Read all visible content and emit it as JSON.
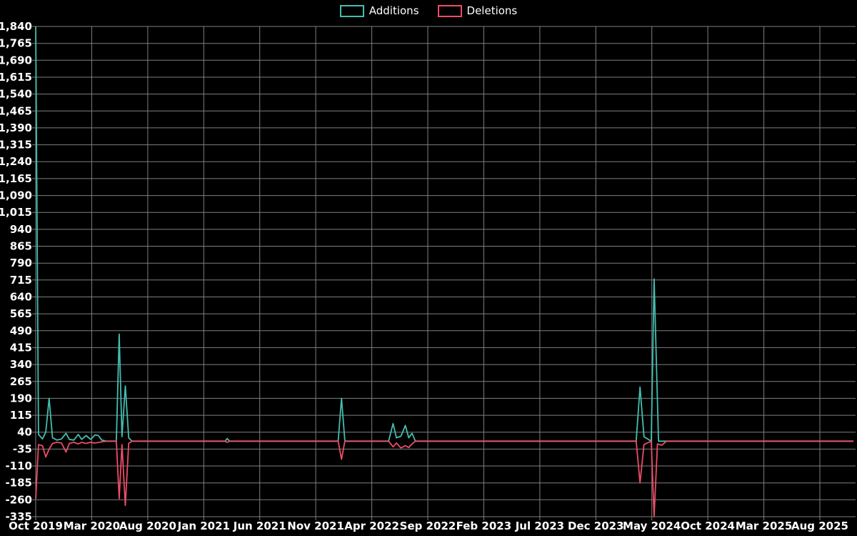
{
  "colors": {
    "background": "#000000",
    "text": "#ffffff",
    "grid": "#7f7f7f",
    "additions": "#43beb0",
    "deletions": "#ec4d66"
  },
  "legend": {
    "items": [
      {
        "label": "Additions"
      },
      {
        "label": "Deletions"
      }
    ]
  },
  "chart_data": {
    "type": "line",
    "title": "",
    "xlabel": "",
    "ylabel": "",
    "grid": true,
    "legend_position": "top-center",
    "ylim": [
      -335,
      1840
    ],
    "y_tick_step": 75,
    "x_unit": "months since Oct 2019",
    "xlim_months": [
      0,
      73.2
    ],
    "y_ticks": [
      {
        "v": 1840,
        "label": "1,840"
      },
      {
        "v": 1765,
        "label": "1,765"
      },
      {
        "v": 1690,
        "label": "1,690"
      },
      {
        "v": 1615,
        "label": "1,615"
      },
      {
        "v": 1540,
        "label": "1,540"
      },
      {
        "v": 1465,
        "label": "1,465"
      },
      {
        "v": 1390,
        "label": "1,390"
      },
      {
        "v": 1315,
        "label": "1,315"
      },
      {
        "v": 1240,
        "label": "1,240"
      },
      {
        "v": 1165,
        "label": "1,165"
      },
      {
        "v": 1090,
        "label": "1,090"
      },
      {
        "v": 1015,
        "label": "1,015"
      },
      {
        "v": 940,
        "label": "940"
      },
      {
        "v": 865,
        "label": "865"
      },
      {
        "v": 790,
        "label": "790"
      },
      {
        "v": 715,
        "label": "715"
      },
      {
        "v": 640,
        "label": "640"
      },
      {
        "v": 565,
        "label": "565"
      },
      {
        "v": 490,
        "label": "490"
      },
      {
        "v": 415,
        "label": "415"
      },
      {
        "v": 340,
        "label": "340"
      },
      {
        "v": 265,
        "label": "265"
      },
      {
        "v": 190,
        "label": "190"
      },
      {
        "v": 115,
        "label": "115"
      },
      {
        "v": 40,
        "label": "40"
      },
      {
        "v": -35,
        "label": "-35"
      },
      {
        "v": -110,
        "label": "-110"
      },
      {
        "v": -185,
        "label": "-185"
      },
      {
        "v": -260,
        "label": "-260"
      },
      {
        "v": -335,
        "label": "-335"
      }
    ],
    "x_ticks": [
      {
        "month": 0,
        "label": "Oct 2019"
      },
      {
        "month": 5,
        "label": "Mar 2020"
      },
      {
        "month": 10,
        "label": "Aug 2020"
      },
      {
        "month": 15,
        "label": "Jan 2021"
      },
      {
        "month": 20,
        "label": "Jun 2021"
      },
      {
        "month": 25,
        "label": "Nov 2021"
      },
      {
        "month": 30,
        "label": "Apr 2022"
      },
      {
        "month": 35,
        "label": "Sep 2022"
      },
      {
        "month": 40,
        "label": "Feb 2023"
      },
      {
        "month": 45,
        "label": "Jul 2023"
      },
      {
        "month": 50,
        "label": "Dec 2023"
      },
      {
        "month": 55,
        "label": "May 2024"
      },
      {
        "month": 60,
        "label": "Oct 2024"
      },
      {
        "month": 65,
        "label": "Mar 2025"
      },
      {
        "month": 70,
        "label": "Aug 2025"
      }
    ],
    "series": [
      {
        "name": "Additions",
        "color": "#43beb0",
        "points": [
          [
            0,
            1840
          ],
          [
            0.25,
            30
          ],
          [
            0.6,
            10
          ],
          [
            0.9,
            40
          ],
          [
            1.2,
            190
          ],
          [
            1.5,
            15
          ],
          [
            1.9,
            5
          ],
          [
            2.3,
            10
          ],
          [
            2.7,
            35
          ],
          [
            3,
            8
          ],
          [
            3.4,
            5
          ],
          [
            3.8,
            30
          ],
          [
            4.1,
            8
          ],
          [
            4.5,
            25
          ],
          [
            4.9,
            8
          ],
          [
            5.3,
            28
          ],
          [
            5.6,
            25
          ],
          [
            5.9,
            5
          ],
          [
            6.3,
            0
          ],
          [
            7.2,
            0
          ],
          [
            7.45,
            475
          ],
          [
            7.7,
            20
          ],
          [
            8,
            245
          ],
          [
            8.3,
            15
          ],
          [
            8.6,
            0
          ],
          [
            16.9,
            0
          ],
          [
            17.1,
            12
          ],
          [
            17.3,
            0
          ],
          [
            27,
            0
          ],
          [
            27.3,
            190
          ],
          [
            27.6,
            0
          ],
          [
            31.5,
            0
          ],
          [
            31.9,
            78
          ],
          [
            32.2,
            15
          ],
          [
            32.6,
            22
          ],
          [
            33,
            70
          ],
          [
            33.3,
            15
          ],
          [
            33.6,
            35
          ],
          [
            33.9,
            0
          ],
          [
            53.6,
            0
          ],
          [
            53.95,
            240
          ],
          [
            54.3,
            20
          ],
          [
            54.95,
            0
          ],
          [
            55.2,
            720
          ],
          [
            55.6,
            0
          ],
          [
            73,
            0
          ]
        ]
      },
      {
        "name": "Deletions",
        "color": "#ec4d66",
        "points": [
          [
            0,
            -255
          ],
          [
            0.25,
            -15
          ],
          [
            0.6,
            -20
          ],
          [
            0.9,
            -70
          ],
          [
            1.2,
            -35
          ],
          [
            1.5,
            -10
          ],
          [
            1.9,
            -5
          ],
          [
            2.3,
            -8
          ],
          [
            2.7,
            -48
          ],
          [
            3,
            -10
          ],
          [
            3.4,
            -5
          ],
          [
            3.8,
            -12
          ],
          [
            4.1,
            -5
          ],
          [
            4.5,
            -10
          ],
          [
            4.9,
            -5
          ],
          [
            5.3,
            -8
          ],
          [
            5.9,
            -3
          ],
          [
            6.3,
            0
          ],
          [
            7.2,
            0
          ],
          [
            7.45,
            -255
          ],
          [
            7.7,
            -15
          ],
          [
            8,
            -285
          ],
          [
            8.3,
            -10
          ],
          [
            8.6,
            0
          ],
          [
            16.9,
            0
          ],
          [
            17.1,
            -5
          ],
          [
            17.3,
            0
          ],
          [
            27,
            0
          ],
          [
            27.3,
            -80
          ],
          [
            27.6,
            0
          ],
          [
            31.5,
            0
          ],
          [
            31.9,
            -25
          ],
          [
            32.2,
            -8
          ],
          [
            32.6,
            -30
          ],
          [
            33,
            -20
          ],
          [
            33.3,
            -28
          ],
          [
            33.6,
            -12
          ],
          [
            33.9,
            0
          ],
          [
            53.6,
            0
          ],
          [
            53.95,
            -185
          ],
          [
            54.3,
            -15
          ],
          [
            54.95,
            0
          ],
          [
            55.2,
            -335
          ],
          [
            55.5,
            -12
          ],
          [
            55.9,
            -18
          ],
          [
            56.3,
            0
          ],
          [
            73,
            0
          ]
        ]
      }
    ]
  }
}
